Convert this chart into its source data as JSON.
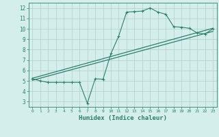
{
  "bg_color": "#d4eeeb",
  "grid_color": "#b0ceca",
  "line_color": "#2e7d6e",
  "xlabel": "Humidex (Indice chaleur)",
  "xlim": [
    -0.5,
    23.5
  ],
  "ylim": [
    2.5,
    12.5
  ],
  "xticks": [
    0,
    1,
    2,
    3,
    4,
    5,
    6,
    7,
    8,
    9,
    10,
    11,
    12,
    13,
    14,
    15,
    16,
    17,
    18,
    19,
    20,
    21,
    22,
    23
  ],
  "yticks": [
    3,
    4,
    5,
    6,
    7,
    8,
    9,
    10,
    11,
    12
  ],
  "series1_x": [
    0,
    1,
    2,
    3,
    4,
    5,
    6,
    7,
    8,
    9,
    10,
    11,
    12,
    13,
    14,
    15,
    16,
    17,
    18,
    19,
    20,
    21,
    22,
    23
  ],
  "series1_y": [
    5.2,
    5.0,
    4.85,
    4.85,
    4.85,
    4.85,
    4.85,
    2.85,
    5.2,
    5.15,
    7.6,
    9.3,
    11.6,
    11.65,
    11.7,
    12.0,
    11.6,
    11.4,
    10.2,
    10.15,
    10.05,
    9.6,
    9.5,
    10.0
  ],
  "series2_x": [
    0,
    23
  ],
  "series2_y": [
    5.05,
    9.75
  ],
  "series3_x": [
    0,
    23
  ],
  "series3_y": [
    5.25,
    10.05
  ]
}
